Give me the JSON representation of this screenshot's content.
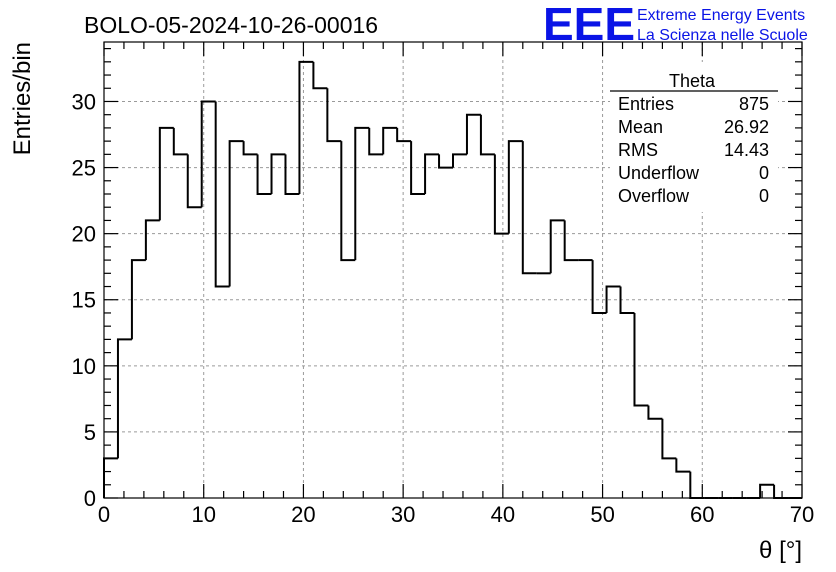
{
  "chart_data": {
    "type": "bar",
    "title": "BOLO-05-2024-10-26-00016",
    "xlabel": "θ [°]",
    "ylabel": "Entries/bin",
    "xlim": [
      0,
      70
    ],
    "ylim": [
      0,
      34.5
    ],
    "bin_width": 1.4,
    "x_ticks": [
      0,
      10,
      20,
      30,
      40,
      50,
      60,
      70
    ],
    "y_ticks": [
      0,
      5,
      10,
      15,
      20,
      25,
      30
    ],
    "grid": true,
    "series": [
      {
        "name": "Theta",
        "bin_edges_start": 0,
        "values": [
          3,
          12,
          18,
          21,
          28,
          26,
          22,
          30,
          16,
          27,
          26,
          23,
          26,
          23,
          33,
          31,
          27,
          18,
          28,
          26,
          28,
          27,
          23,
          26,
          25,
          26,
          29,
          26,
          20,
          27,
          17,
          17,
          21,
          18,
          18,
          14,
          16,
          14,
          7,
          6,
          3,
          2,
          0,
          0,
          0,
          0,
          0,
          1,
          0,
          0
        ]
      }
    ],
    "stats_box": {
      "title": "Theta",
      "rows": [
        {
          "label": "Entries",
          "value": "875"
        },
        {
          "label": "Mean",
          "value": "26.92"
        },
        {
          "label": "RMS",
          "value": "14.43"
        },
        {
          "label": "Underflow",
          "value": "0"
        },
        {
          "label": "Overflow",
          "value": "0"
        }
      ],
      "placement": "top-right"
    }
  },
  "logo": {
    "mark": "EEE",
    "line1": "Extreme Energy Events",
    "line2": "La Scienza nelle Scuole",
    "color": "#0a14e6"
  },
  "colors": {
    "histogram": "#000000",
    "grid": "#9a9a9a"
  }
}
